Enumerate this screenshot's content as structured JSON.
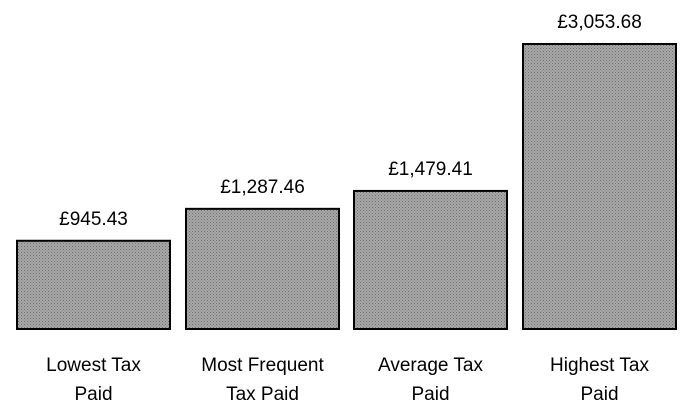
{
  "chart_data": {
    "type": "bar",
    "title": "",
    "xlabel": "",
    "ylabel": "",
    "ylim": [
      0,
      3053.68
    ],
    "grid": false,
    "legend": "none",
    "categories": [
      [
        "Lowest Tax",
        "Paid"
      ],
      [
        "Most Frequent",
        "Tax Paid"
      ],
      [
        "Average Tax",
        "Paid"
      ],
      [
        "Highest Tax",
        "Paid"
      ]
    ],
    "values": [
      945.43,
      1287.46,
      1479.41,
      3053.68
    ],
    "value_labels": [
      "£945.43",
      "£1,287.46",
      "£1,479.41",
      "£3,053.68"
    ],
    "bar_fill": "#999999",
    "bar_stroke": "#000000",
    "bar_pattern": "dotted-grey"
  }
}
